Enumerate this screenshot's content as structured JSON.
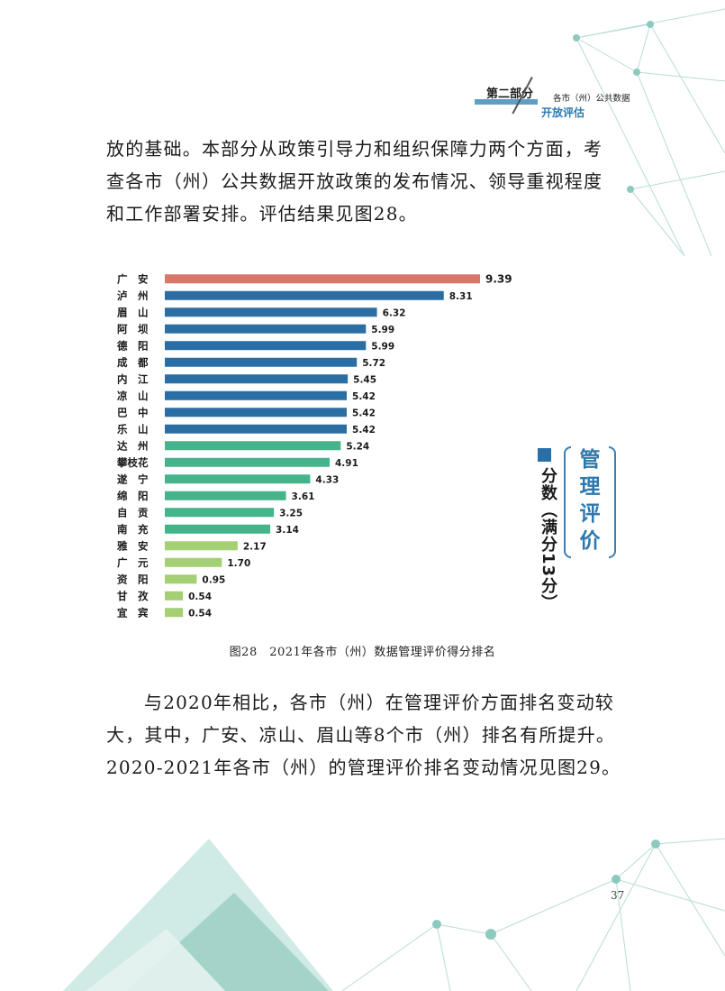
{
  "header": {
    "part": "第二部分",
    "subtitle_top": "各市（州）公共数据",
    "subtitle_bottom": "开放评估"
  },
  "intro_paragraph": {
    "lines": [
      "放的基础。本部分从政策引导力和组织保障力两个方面，考",
      "查各市（州）公共数据开放政策的发布情况、领导重视程度",
      "和工作部署安排。评估结果见图28。"
    ]
  },
  "chart_badge": {
    "chars": [
      "管",
      "理",
      "评",
      "价"
    ]
  },
  "chart_data": {
    "type": "bar",
    "orientation": "horizontal",
    "unit_label": "分数（满分13分）",
    "categories": [
      "广　安",
      "泸　州",
      "眉　山",
      "阿　坝",
      "德　阳",
      "成　都",
      "内　江",
      "凉　山",
      "巴　中",
      "乐　山",
      "达　州",
      "攀枝花",
      "遂　宁",
      "绵　阳",
      "自　贡",
      "南　充",
      "雅　安",
      "广　元",
      "资　阳",
      "甘　孜",
      "宜　宾"
    ],
    "values": [
      9.39,
      8.31,
      6.32,
      5.99,
      5.99,
      5.72,
      5.45,
      5.42,
      5.42,
      5.42,
      5.24,
      4.91,
      4.33,
      3.61,
      3.25,
      3.14,
      2.17,
      1.7,
      0.95,
      0.54,
      0.54
    ],
    "value_labels": [
      "9.39",
      "8.31",
      "6.32",
      "5.99",
      "5.99",
      "5.72",
      "5.45",
      "5.42",
      "5.42",
      "5.42",
      "5.24",
      "4.91",
      "4.33",
      "3.61",
      "3.25",
      "3.14",
      "2.17",
      "1.70",
      "0.95",
      "0.54",
      "0.54"
    ],
    "groups": [
      "top",
      "blue",
      "blue",
      "blue",
      "blue",
      "blue",
      "blue",
      "blue",
      "blue",
      "blue",
      "green",
      "green",
      "green",
      "green",
      "green",
      "green",
      "light",
      "light",
      "light",
      "light",
      "light"
    ],
    "colors": {
      "top": "#d8786a",
      "blue": "#2b6ea4",
      "green": "#45b48a",
      "light": "#a5cf74"
    },
    "xlim": [
      0,
      13
    ],
    "grid": false
  },
  "caption": "图28　2021年各市（州）数据管理评价得分排名",
  "body_paragraph": {
    "lines": [
      "与2020年相比，各市（州）在管理评价方面排名变动较",
      "大，其中，广安、凉山、眉山等8个市（州）排名有所提升。",
      "2020-2021年各市（州）的管理评价排名变动情况见图29。"
    ]
  },
  "page_number": "37"
}
